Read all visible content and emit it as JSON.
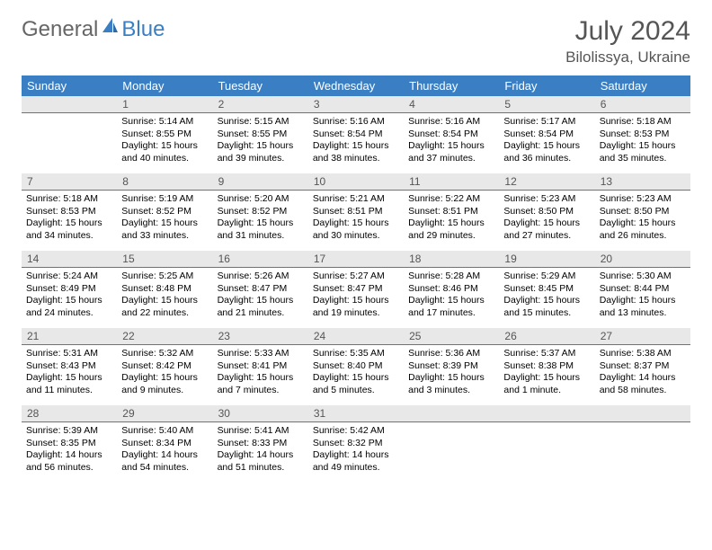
{
  "brand": {
    "text1": "General",
    "text2": "Blue",
    "accent_color": "#3a7fc4",
    "gray_color": "#666666"
  },
  "title": "July 2024",
  "location": "Bilolissya, Ukraine",
  "colors": {
    "header_bg": "#3a7fc4",
    "header_fg": "#ffffff",
    "daynum_bg": "#e8e8e8",
    "daynum_fg": "#555555",
    "day_border": "#3a7fc4",
    "page_bg": "#ffffff",
    "text": "#000000"
  },
  "fonts": {
    "title_size": 30,
    "location_size": 17,
    "th_size": 13,
    "daynum_size": 12,
    "content_size": 10.5
  },
  "weekdays": [
    "Sunday",
    "Monday",
    "Tuesday",
    "Wednesday",
    "Thursday",
    "Friday",
    "Saturday"
  ],
  "weeks": [
    [
      null,
      {
        "n": "1",
        "sr": "5:14 AM",
        "ss": "8:55 PM",
        "dl": "15 hours and 40 minutes."
      },
      {
        "n": "2",
        "sr": "5:15 AM",
        "ss": "8:55 PM",
        "dl": "15 hours and 39 minutes."
      },
      {
        "n": "3",
        "sr": "5:16 AM",
        "ss": "8:54 PM",
        "dl": "15 hours and 38 minutes."
      },
      {
        "n": "4",
        "sr": "5:16 AM",
        "ss": "8:54 PM",
        "dl": "15 hours and 37 minutes."
      },
      {
        "n": "5",
        "sr": "5:17 AM",
        "ss": "8:54 PM",
        "dl": "15 hours and 36 minutes."
      },
      {
        "n": "6",
        "sr": "5:18 AM",
        "ss": "8:53 PM",
        "dl": "15 hours and 35 minutes."
      }
    ],
    [
      {
        "n": "7",
        "sr": "5:18 AM",
        "ss": "8:53 PM",
        "dl": "15 hours and 34 minutes."
      },
      {
        "n": "8",
        "sr": "5:19 AM",
        "ss": "8:52 PM",
        "dl": "15 hours and 33 minutes."
      },
      {
        "n": "9",
        "sr": "5:20 AM",
        "ss": "8:52 PM",
        "dl": "15 hours and 31 minutes."
      },
      {
        "n": "10",
        "sr": "5:21 AM",
        "ss": "8:51 PM",
        "dl": "15 hours and 30 minutes."
      },
      {
        "n": "11",
        "sr": "5:22 AM",
        "ss": "8:51 PM",
        "dl": "15 hours and 29 minutes."
      },
      {
        "n": "12",
        "sr": "5:23 AM",
        "ss": "8:50 PM",
        "dl": "15 hours and 27 minutes."
      },
      {
        "n": "13",
        "sr": "5:23 AM",
        "ss": "8:50 PM",
        "dl": "15 hours and 26 minutes."
      }
    ],
    [
      {
        "n": "14",
        "sr": "5:24 AM",
        "ss": "8:49 PM",
        "dl": "15 hours and 24 minutes."
      },
      {
        "n": "15",
        "sr": "5:25 AM",
        "ss": "8:48 PM",
        "dl": "15 hours and 22 minutes."
      },
      {
        "n": "16",
        "sr": "5:26 AM",
        "ss": "8:47 PM",
        "dl": "15 hours and 21 minutes."
      },
      {
        "n": "17",
        "sr": "5:27 AM",
        "ss": "8:47 PM",
        "dl": "15 hours and 19 minutes."
      },
      {
        "n": "18",
        "sr": "5:28 AM",
        "ss": "8:46 PM",
        "dl": "15 hours and 17 minutes."
      },
      {
        "n": "19",
        "sr": "5:29 AM",
        "ss": "8:45 PM",
        "dl": "15 hours and 15 minutes."
      },
      {
        "n": "20",
        "sr": "5:30 AM",
        "ss": "8:44 PM",
        "dl": "15 hours and 13 minutes."
      }
    ],
    [
      {
        "n": "21",
        "sr": "5:31 AM",
        "ss": "8:43 PM",
        "dl": "15 hours and 11 minutes."
      },
      {
        "n": "22",
        "sr": "5:32 AM",
        "ss": "8:42 PM",
        "dl": "15 hours and 9 minutes."
      },
      {
        "n": "23",
        "sr": "5:33 AM",
        "ss": "8:41 PM",
        "dl": "15 hours and 7 minutes."
      },
      {
        "n": "24",
        "sr": "5:35 AM",
        "ss": "8:40 PM",
        "dl": "15 hours and 5 minutes."
      },
      {
        "n": "25",
        "sr": "5:36 AM",
        "ss": "8:39 PM",
        "dl": "15 hours and 3 minutes."
      },
      {
        "n": "26",
        "sr": "5:37 AM",
        "ss": "8:38 PM",
        "dl": "15 hours and 1 minute."
      },
      {
        "n": "27",
        "sr": "5:38 AM",
        "ss": "8:37 PM",
        "dl": "14 hours and 58 minutes."
      }
    ],
    [
      {
        "n": "28",
        "sr": "5:39 AM",
        "ss": "8:35 PM",
        "dl": "14 hours and 56 minutes."
      },
      {
        "n": "29",
        "sr": "5:40 AM",
        "ss": "8:34 PM",
        "dl": "14 hours and 54 minutes."
      },
      {
        "n": "30",
        "sr": "5:41 AM",
        "ss": "8:33 PM",
        "dl": "14 hours and 51 minutes."
      },
      {
        "n": "31",
        "sr": "5:42 AM",
        "ss": "8:32 PM",
        "dl": "14 hours and 49 minutes."
      },
      null,
      null,
      null
    ]
  ],
  "labels": {
    "sunrise": "Sunrise:",
    "sunset": "Sunset:",
    "daylight": "Daylight:"
  }
}
